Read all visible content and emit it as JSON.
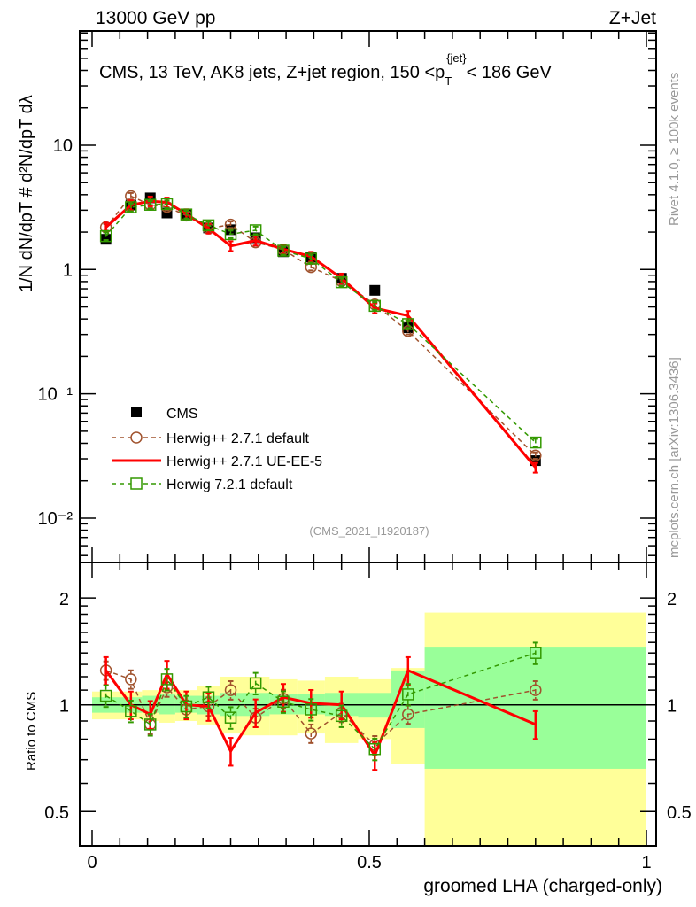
{
  "header": {
    "left": "13000 GeV pp",
    "right": "Z+Jet"
  },
  "side": {
    "rivet": "Rivet 4.1.0, ≥ 100k events",
    "mcplots": "mcplots.cern.ch [arXiv:1306.3436]"
  },
  "chart_data": [
    {
      "type": "line",
      "title": "CMS, 13 TeV, AK8 jets, Z+jet region, 150 < pT{jet} < 186 GeV",
      "title_parts": {
        "pre": "CMS, 13 TeV, AK8 jets, Z+jet region, 150 <",
        "p": "p",
        "sub": "T",
        "sup": "{jet}",
        "post": "< 186 GeV"
      },
      "ylabel": "1/N dN/dpT  # d²N/dpT dλ",
      "analysis": "(CMS_2021_I1920187)",
      "yscale": "log",
      "ylim": [
        0.0044,
        83
      ],
      "ytick_labels": [
        {
          "v": 0.01,
          "t": "10⁻²"
        },
        {
          "v": 0.1,
          "t": "10⁻¹"
        },
        {
          "v": 1,
          "t": "1"
        },
        {
          "v": 10,
          "t": "10"
        }
      ],
      "x": [
        0.025,
        0.07,
        0.105,
        0.135,
        0.17,
        0.21,
        0.25,
        0.295,
        0.345,
        0.395,
        0.45,
        0.51,
        0.57,
        0.8
      ],
      "bin_edges": [
        0,
        0.05,
        0.09,
        0.12,
        0.15,
        0.19,
        0.23,
        0.27,
        0.32,
        0.37,
        0.42,
        0.48,
        0.54,
        0.6,
        1.0
      ],
      "data": {
        "name": "CMS",
        "values": [
          1.75,
          3.3,
          3.77,
          2.85,
          2.8,
          2.16,
          2.09,
          1.8,
          1.39,
          1.26,
          0.85,
          0.68,
          0.34,
          0.029
        ]
      },
      "legend_position": "bottom-left",
      "legend": [
        "CMS",
        "Herwig++ 2.7.1 default",
        "Herwig++ 2.7.1 UE-EE-5",
        "Herwig 7.2.1 default"
      ]
    },
    {
      "type": "line",
      "ylabel": "Ratio to CMS",
      "xlabel": "groomed LHA (charged-only)",
      "yscale": "log",
      "ylim": [
        0.4,
        2.52
      ],
      "xlim": [
        0,
        1
      ],
      "ytick_labels": [
        {
          "v": 0.5,
          "t": "0.5"
        },
        {
          "v": 1,
          "t": "1"
        },
        {
          "v": 2,
          "t": "2"
        }
      ],
      "xtick_labels": [
        {
          "v": 0,
          "t": "0"
        },
        {
          "v": 0.5,
          "t": "0.5"
        },
        {
          "v": 1,
          "t": "1"
        }
      ],
      "stat_band": {
        "lo": [
          0.95,
          0.95,
          0.95,
          0.94,
          0.95,
          0.94,
          0.93,
          0.93,
          0.94,
          0.94,
          0.93,
          0.92,
          0.86,
          0.66
        ],
        "hi": [
          1.05,
          1.05,
          1.06,
          1.07,
          1.06,
          1.06,
          1.08,
          1.08,
          1.07,
          1.07,
          1.08,
          1.08,
          1.25,
          1.45
        ]
      },
      "total_band": {
        "lo": [
          0.91,
          0.91,
          0.9,
          0.89,
          0.9,
          0.88,
          0.83,
          0.82,
          0.82,
          0.83,
          0.78,
          0.8,
          0.68,
          0.4
        ],
        "hi": [
          1.09,
          1.09,
          1.1,
          1.11,
          1.1,
          1.13,
          1.2,
          1.2,
          1.18,
          1.17,
          1.2,
          1.18,
          1.27,
          1.82
        ]
      },
      "series": [
        {
          "name": "Herwig++ 2.7.1 default",
          "color": "#a0522d",
          "style": "dashed",
          "marker": "circle",
          "err": 0.06,
          "values": [
            1.25,
            1.18,
            0.88,
            1.12,
            0.97,
            0.99,
            1.1,
            0.92,
            1.04,
            0.83,
            0.95,
            0.77,
            0.94,
            1.1
          ]
        },
        {
          "name": "Herwig++ 2.7.1 UE-EE-5",
          "color": "#ff0000",
          "style": "solid",
          "marker": "none",
          "err": 0.09,
          "values": [
            1.25,
            1.0,
            0.94,
            1.22,
            1.0,
            0.99,
            0.74,
            0.95,
            1.05,
            1.01,
            1.0,
            0.72,
            1.25,
            0.88
          ]
        },
        {
          "name": "Herwig 7.2.1 default",
          "color": "#339900",
          "style": "dashed",
          "marker": "square",
          "err": 0.07,
          "values": [
            1.06,
            0.96,
            0.88,
            1.18,
            0.99,
            1.05,
            0.92,
            1.15,
            1.02,
            0.97,
            0.93,
            0.75,
            1.07,
            1.4
          ]
        }
      ]
    }
  ]
}
